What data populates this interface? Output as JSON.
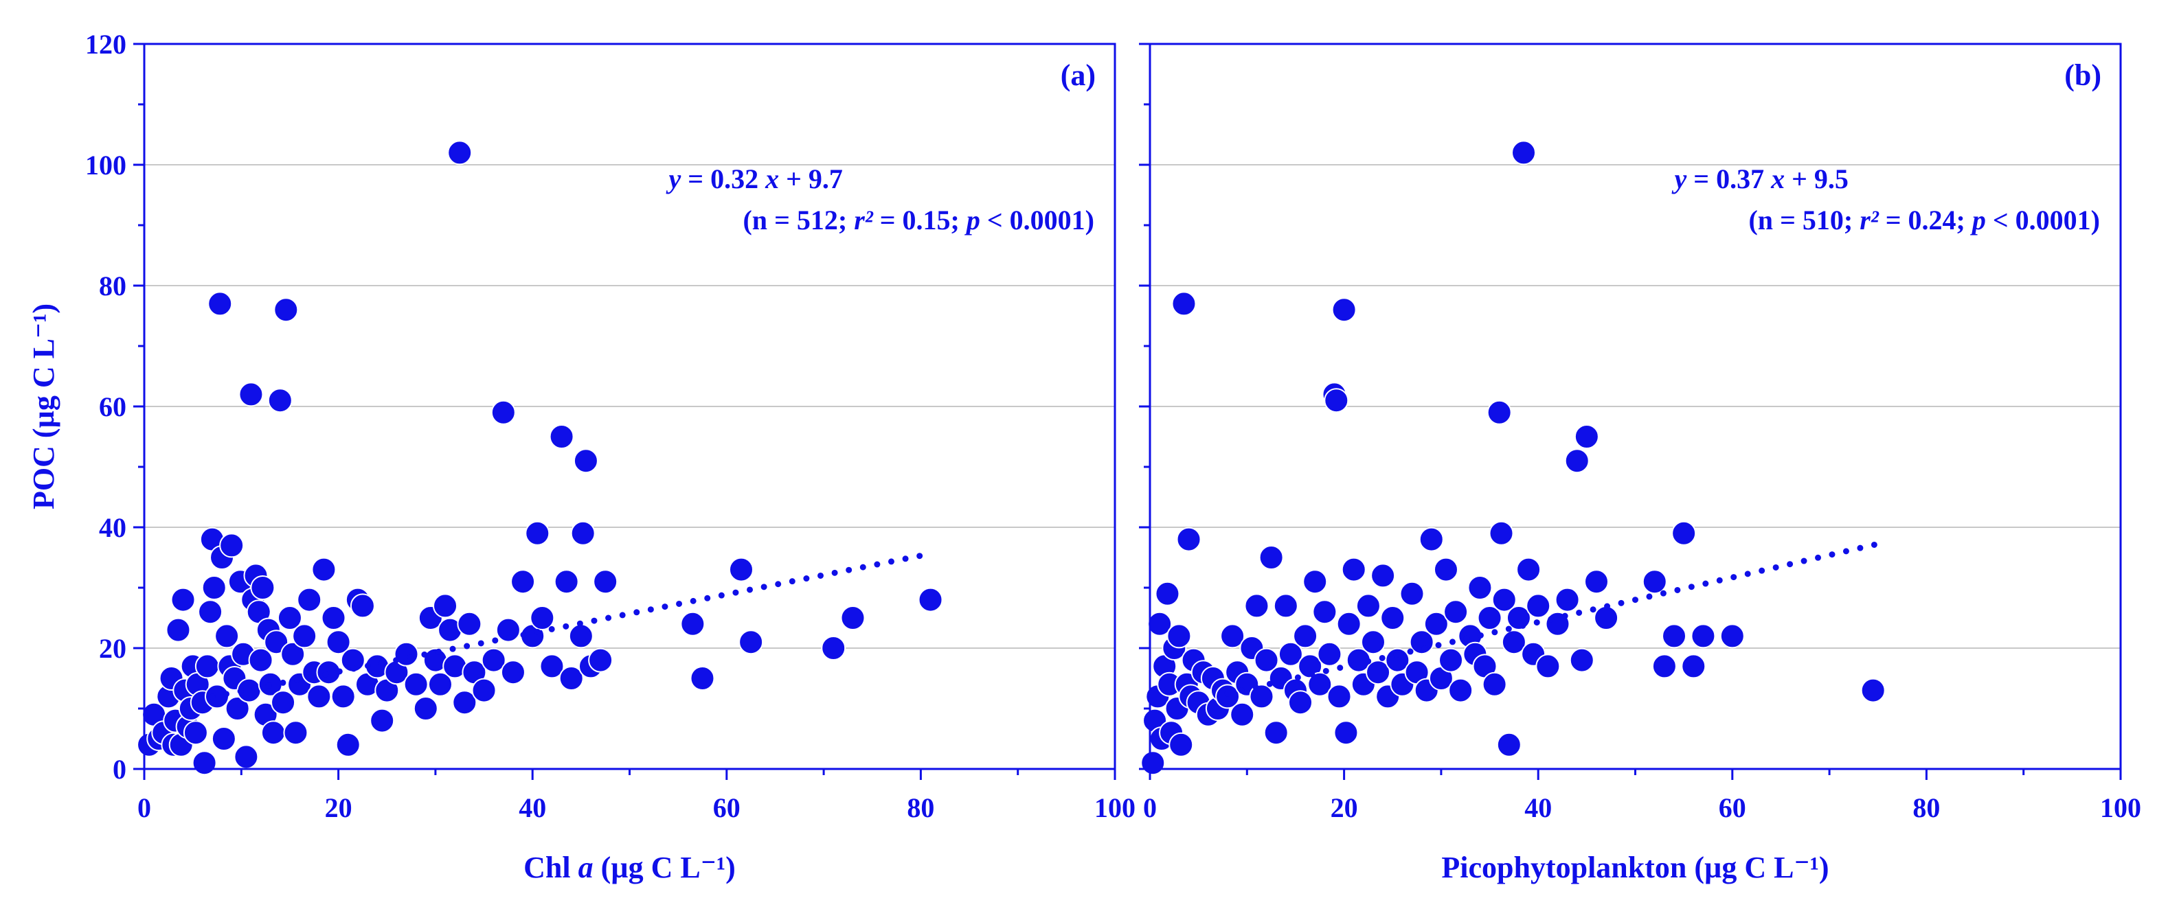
{
  "figure": {
    "color": "#0f0fe8",
    "grid_color": "#c8c8c8"
  },
  "chart_data": [
    {
      "type": "scatter",
      "panel_label": "(a)",
      "xlabel": "Chl a (µg C L⁻¹)",
      "ylabel": "POC (µg C L⁻¹)",
      "xlim": [
        0,
        100
      ],
      "ylim": [
        0,
        120
      ],
      "xticks": [
        0,
        20,
        40,
        60,
        80,
        100
      ],
      "yticks": [
        0,
        20,
        40,
        60,
        80,
        100,
        120
      ],
      "grid": "horizontal",
      "equation": "y = 0.32 x + 9.7",
      "stats": "(n = 512; r² = 0.15; p < 0.0001)",
      "fit": {
        "slope": 0.32,
        "intercept": 9.7,
        "x_range": [
          7,
          81
        ],
        "style": "dotted"
      },
      "points": [
        [
          0.5,
          4
        ],
        [
          1,
          9
        ],
        [
          1.5,
          5
        ],
        [
          2,
          6
        ],
        [
          2.5,
          12
        ],
        [
          2.8,
          15
        ],
        [
          3,
          4
        ],
        [
          3.2,
          8
        ],
        [
          3.5,
          23
        ],
        [
          3.8,
          4
        ],
        [
          4,
          28
        ],
        [
          4.2,
          13
        ],
        [
          4.5,
          7
        ],
        [
          4.8,
          10
        ],
        [
          5,
          17
        ],
        [
          5.3,
          6
        ],
        [
          5.5,
          14
        ],
        [
          6,
          11
        ],
        [
          6.2,
          1
        ],
        [
          6.5,
          17
        ],
        [
          6.8,
          26
        ],
        [
          7,
          38
        ],
        [
          7.2,
          30
        ],
        [
          7.5,
          12
        ],
        [
          7.8,
          77
        ],
        [
          8,
          35
        ],
        [
          8.2,
          5
        ],
        [
          8.5,
          22
        ],
        [
          8.8,
          17
        ],
        [
          9,
          37
        ],
        [
          9.3,
          15
        ],
        [
          9.6,
          10
        ],
        [
          9.9,
          31
        ],
        [
          10.2,
          19
        ],
        [
          10.5,
          2
        ],
        [
          10.8,
          13
        ],
        [
          11,
          62
        ],
        [
          11.2,
          28
        ],
        [
          11.5,
          32
        ],
        [
          11.8,
          26
        ],
        [
          12,
          18
        ],
        [
          12.2,
          30
        ],
        [
          12.5,
          9
        ],
        [
          12.8,
          23
        ],
        [
          13,
          14
        ],
        [
          13.3,
          6
        ],
        [
          13.6,
          21
        ],
        [
          14,
          61
        ],
        [
          14.3,
          11
        ],
        [
          14.6,
          76
        ],
        [
          15,
          25
        ],
        [
          15.3,
          19
        ],
        [
          15.6,
          6
        ],
        [
          16,
          14
        ],
        [
          16.5,
          22
        ],
        [
          17,
          28
        ],
        [
          17.5,
          16
        ],
        [
          18,
          12
        ],
        [
          18.5,
          33
        ],
        [
          19,
          16
        ],
        [
          19.5,
          25
        ],
        [
          20,
          21
        ],
        [
          20.5,
          12
        ],
        [
          21,
          4
        ],
        [
          21.5,
          18
        ],
        [
          22,
          28
        ],
        [
          22.5,
          27
        ],
        [
          23,
          14
        ],
        [
          24,
          17
        ],
        [
          24.5,
          8
        ],
        [
          25,
          13
        ],
        [
          26,
          16
        ],
        [
          27,
          19
        ],
        [
          28,
          14
        ],
        [
          29,
          10
        ],
        [
          29.5,
          25
        ],
        [
          30,
          18
        ],
        [
          30.5,
          14
        ],
        [
          31,
          27
        ],
        [
          31.5,
          23
        ],
        [
          32,
          17
        ],
        [
          32.5,
          102
        ],
        [
          33,
          11
        ],
        [
          33.5,
          24
        ],
        [
          34,
          16
        ],
        [
          35,
          13
        ],
        [
          36,
          18
        ],
        [
          37,
          59
        ],
        [
          37.5,
          23
        ],
        [
          38,
          16
        ],
        [
          39,
          31
        ],
        [
          40,
          22
        ],
        [
          40.5,
          39
        ],
        [
          41,
          25
        ],
        [
          42,
          17
        ],
        [
          43,
          55
        ],
        [
          43.5,
          31
        ],
        [
          44,
          15
        ],
        [
          45,
          22
        ],
        [
          45.5,
          51
        ],
        [
          45.2,
          39
        ],
        [
          46,
          17
        ],
        [
          47,
          18
        ],
        [
          47.5,
          31
        ],
        [
          56.5,
          24
        ],
        [
          57.5,
          15
        ],
        [
          61.5,
          33
        ],
        [
          62.5,
          21
        ],
        [
          71,
          20
        ],
        [
          73,
          25
        ],
        [
          81,
          28
        ]
      ]
    },
    {
      "type": "scatter",
      "panel_label": "(b)",
      "xlabel": "Picophytoplankton (µg C L⁻¹)",
      "ylabel": "",
      "xlim": [
        0,
        100
      ],
      "ylim": [
        0,
        120
      ],
      "xticks": [
        0,
        20,
        40,
        60,
        80,
        100
      ],
      "yticks": [
        0,
        20,
        40,
        60,
        80,
        100,
        120
      ],
      "grid": "horizontal",
      "equation": "y = 0.37 x + 9.5",
      "stats": "(n = 510; r² = 0.24; p < 0.0001)",
      "fit": {
        "slope": 0.37,
        "intercept": 9.5,
        "x_range": [
          8,
          75
        ],
        "style": "dotted"
      },
      "points": [
        [
          0.3,
          1
        ],
        [
          0.5,
          8
        ],
        [
          0.8,
          12
        ],
        [
          1,
          24
        ],
        [
          1.2,
          5
        ],
        [
          1.5,
          17
        ],
        [
          1.8,
          29
        ],
        [
          2,
          14
        ],
        [
          2.2,
          6
        ],
        [
          2.5,
          20
        ],
        [
          2.8,
          10
        ],
        [
          3,
          22
        ],
        [
          3.2,
          4
        ],
        [
          3.5,
          77
        ],
        [
          3.8,
          14
        ],
        [
          4,
          38
        ],
        [
          4.2,
          12
        ],
        [
          4.5,
          18
        ],
        [
          5,
          11
        ],
        [
          5.5,
          16
        ],
        [
          6,
          9
        ],
        [
          6.5,
          15
        ],
        [
          7,
          10
        ],
        [
          7.5,
          13
        ],
        [
          8,
          12
        ],
        [
          8.5,
          22
        ],
        [
          9,
          16
        ],
        [
          9.5,
          9
        ],
        [
          10,
          14
        ],
        [
          10.5,
          20
        ],
        [
          11,
          27
        ],
        [
          11.5,
          12
        ],
        [
          12,
          18
        ],
        [
          12.5,
          35
        ],
        [
          13,
          6
        ],
        [
          13.5,
          15
        ],
        [
          14,
          27
        ],
        [
          14.5,
          19
        ],
        [
          15,
          13
        ],
        [
          15.5,
          11
        ],
        [
          16,
          22
        ],
        [
          16.5,
          17
        ],
        [
          17,
          31
        ],
        [
          17.5,
          14
        ],
        [
          18,
          26
        ],
        [
          18.5,
          19
        ],
        [
          19,
          62
        ],
        [
          19.2,
          61
        ],
        [
          19.5,
          12
        ],
        [
          20,
          76
        ],
        [
          20.2,
          6
        ],
        [
          20.5,
          24
        ],
        [
          21,
          33
        ],
        [
          21.5,
          18
        ],
        [
          22,
          14
        ],
        [
          22.5,
          27
        ],
        [
          23,
          21
        ],
        [
          23.5,
          16
        ],
        [
          24,
          32
        ],
        [
          24.5,
          12
        ],
        [
          25,
          25
        ],
        [
          25.5,
          18
        ],
        [
          26,
          14
        ],
        [
          27,
          29
        ],
        [
          27.5,
          16
        ],
        [
          28,
          21
        ],
        [
          28.5,
          13
        ],
        [
          29,
          38
        ],
        [
          29.5,
          24
        ],
        [
          30,
          15
        ],
        [
          30.5,
          33
        ],
        [
          31,
          18
        ],
        [
          31.5,
          26
        ],
        [
          32,
          13
        ],
        [
          33,
          22
        ],
        [
          33.5,
          19
        ],
        [
          34,
          30
        ],
        [
          34.5,
          17
        ],
        [
          35,
          25
        ],
        [
          35.5,
          14
        ],
        [
          36,
          59
        ],
        [
          36.2,
          39
        ],
        [
          36.5,
          28
        ],
        [
          37,
          4
        ],
        [
          37.5,
          21
        ],
        [
          38,
          25
        ],
        [
          38.5,
          102
        ],
        [
          39,
          33
        ],
        [
          39.5,
          19
        ],
        [
          40,
          27
        ],
        [
          41,
          17
        ],
        [
          42,
          24
        ],
        [
          43,
          28
        ],
        [
          44,
          51
        ],
        [
          44.5,
          18
        ],
        [
          45,
          55
        ],
        [
          46,
          31
        ],
        [
          47,
          25
        ],
        [
          52,
          31
        ],
        [
          53,
          17
        ],
        [
          54,
          22
        ],
        [
          55,
          39
        ],
        [
          56,
          17
        ],
        [
          57,
          22
        ],
        [
          60,
          22
        ],
        [
          74.5,
          13
        ]
      ]
    }
  ]
}
